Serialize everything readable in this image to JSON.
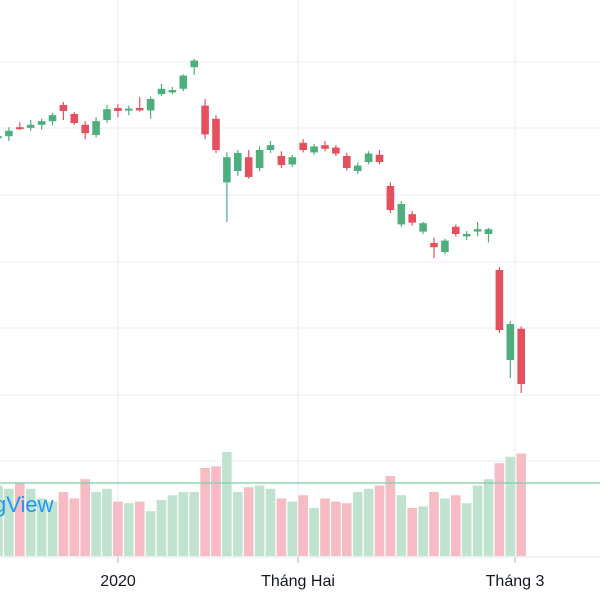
{
  "watermark": "gView",
  "chart_data": {
    "type": "candlestick",
    "title": "",
    "xlabel": "",
    "ylabel": "",
    "grid": true,
    "x_tick_labels": [
      {
        "index": 6,
        "label": "2020"
      },
      {
        "index": 15,
        "label": "Tháng Hai"
      },
      {
        "index": 26,
        "label": "Tháng 3"
      }
    ],
    "price_range": [
      0,
      100
    ],
    "volume_range": [
      0,
      100
    ],
    "colors": {
      "up": "#4caf7d",
      "down": "#e5505e",
      "up_volume": "#bfe3cf",
      "down_volume": "#f7bcc3",
      "grid": "#eaecef"
    },
    "series": [
      {
        "o": 77.0,
        "c": 77.3,
        "h": 78.2,
        "l": 76.2,
        "v": 44,
        "dir": "up"
      },
      {
        "o": 77.3,
        "c": 78.2,
        "h": 78.8,
        "l": 76.5,
        "v": 42,
        "dir": "up"
      },
      {
        "o": 78.8,
        "c": 78.8,
        "h": 79.6,
        "l": 78.3,
        "v": 46,
        "dir": "down"
      },
      {
        "o": 78.7,
        "c": 79.2,
        "h": 80.0,
        "l": 78.2,
        "v": 42,
        "dir": "up"
      },
      {
        "o": 79.2,
        "c": 79.8,
        "h": 80.2,
        "l": 78.4,
        "v": 36,
        "dir": "up"
      },
      {
        "o": 79.8,
        "c": 80.8,
        "h": 81.2,
        "l": 79.1,
        "v": 34,
        "dir": "up"
      },
      {
        "o": 81.5,
        "c": 82.5,
        "h": 83.0,
        "l": 80.0,
        "v": 40,
        "dir": "down"
      },
      {
        "o": 79.5,
        "c": 81.0,
        "h": 81.3,
        "l": 79.2,
        "v": 36,
        "dir": "down"
      },
      {
        "o": 77.8,
        "c": 79.2,
        "h": 79.8,
        "l": 76.8,
        "v": 48,
        "dir": "down"
      },
      {
        "o": 77.5,
        "c": 79.8,
        "h": 80.5,
        "l": 77.1,
        "v": 40,
        "dir": "up"
      },
      {
        "o": 80.0,
        "c": 81.8,
        "h": 82.5,
        "l": 79.5,
        "v": 42,
        "dir": "up"
      },
      {
        "o": 81.5,
        "c": 82.0,
        "h": 82.6,
        "l": 80.5,
        "v": 34,
        "dir": "down"
      },
      {
        "o": 81.6,
        "c": 81.9,
        "h": 82.4,
        "l": 80.8,
        "v": 33,
        "dir": "up"
      },
      {
        "o": 81.6,
        "c": 82.0,
        "h": 83.8,
        "l": 81.4,
        "v": 34,
        "dir": "down"
      },
      {
        "o": 81.6,
        "c": 83.5,
        "h": 83.9,
        "l": 80.2,
        "v": 28,
        "dir": "up"
      },
      {
        "o": 84.3,
        "c": 85.2,
        "h": 86.0,
        "l": 84.0,
        "v": 35,
        "dir": "up"
      },
      {
        "o": 84.6,
        "c": 85.0,
        "h": 85.5,
        "l": 84.3,
        "v": 38,
        "dir": "up"
      },
      {
        "o": 85.2,
        "c": 87.4,
        "h": 87.6,
        "l": 84.8,
        "v": 40,
        "dir": "up"
      },
      {
        "o": 88.8,
        "c": 89.9,
        "h": 90.2,
        "l": 87.5,
        "v": 40,
        "dir": "up"
      },
      {
        "o": 82.4,
        "c": 77.6,
        "h": 83.5,
        "l": 76.8,
        "v": 55,
        "dir": "down"
      },
      {
        "o": 80.2,
        "c": 75.0,
        "h": 80.8,
        "l": 74.5,
        "v": 56,
        "dir": "down"
      },
      {
        "o": 69.6,
        "c": 73.8,
        "h": 74.6,
        "l": 63.0,
        "v": 65,
        "dir": "up"
      },
      {
        "o": 71.5,
        "c": 74.5,
        "h": 75.0,
        "l": 70.7,
        "v": 40,
        "dir": "up"
      },
      {
        "o": 73.8,
        "c": 70.5,
        "h": 75.0,
        "l": 70.2,
        "v": 43,
        "dir": "down"
      },
      {
        "o": 72.0,
        "c": 75.0,
        "h": 75.6,
        "l": 71.5,
        "v": 44,
        "dir": "up"
      },
      {
        "o": 75.0,
        "c": 75.8,
        "h": 76.5,
        "l": 74.5,
        "v": 42,
        "dir": "up"
      },
      {
        "o": 74.0,
        "c": 72.5,
        "h": 74.8,
        "l": 72.0,
        "v": 36,
        "dir": "down"
      },
      {
        "o": 72.6,
        "c": 73.8,
        "h": 74.2,
        "l": 72.2,
        "v": 34,
        "dir": "up"
      },
      {
        "o": 76.2,
        "c": 75.0,
        "h": 76.8,
        "l": 74.6,
        "v": 38,
        "dir": "down"
      },
      {
        "o": 74.6,
        "c": 75.6,
        "h": 76.0,
        "l": 74.2,
        "v": 30,
        "dir": "up"
      },
      {
        "o": 75.8,
        "c": 75.2,
        "h": 76.5,
        "l": 74.8,
        "v": 36,
        "dir": "down"
      },
      {
        "o": 75.4,
        "c": 74.4,
        "h": 75.8,
        "l": 74.0,
        "v": 34,
        "dir": "down"
      },
      {
        "o": 74.0,
        "c": 72.0,
        "h": 74.5,
        "l": 71.6,
        "v": 33,
        "dir": "down"
      },
      {
        "o": 71.5,
        "c": 72.4,
        "h": 72.9,
        "l": 71.0,
        "v": 40,
        "dir": "up"
      },
      {
        "o": 73.0,
        "c": 74.4,
        "h": 74.8,
        "l": 72.6,
        "v": 42,
        "dir": "up"
      },
      {
        "o": 74.2,
        "c": 73.0,
        "h": 75.0,
        "l": 72.6,
        "v": 44,
        "dir": "down"
      },
      {
        "o": 69.0,
        "c": 65.0,
        "h": 69.6,
        "l": 64.5,
        "v": 50,
        "dir": "down"
      },
      {
        "o": 66.0,
        "c": 62.6,
        "h": 66.5,
        "l": 62.2,
        "v": 38,
        "dir": "up"
      },
      {
        "o": 64.3,
        "c": 62.9,
        "h": 64.8,
        "l": 62.4,
        "v": 30,
        "dir": "down"
      },
      {
        "o": 62.8,
        "c": 61.4,
        "h": 63.0,
        "l": 61.0,
        "v": 31,
        "dir": "up"
      },
      {
        "o": 59.5,
        "c": 58.8,
        "h": 60.4,
        "l": 57.0,
        "v": 40,
        "dir": "down"
      },
      {
        "o": 58.0,
        "c": 59.9,
        "h": 60.2,
        "l": 57.6,
        "v": 36,
        "dir": "up"
      },
      {
        "o": 62.2,
        "c": 61.0,
        "h": 62.6,
        "l": 60.6,
        "v": 38,
        "dir": "down"
      },
      {
        "o": 60.6,
        "c": 61.0,
        "h": 61.5,
        "l": 60.0,
        "v": 33,
        "dir": "up"
      },
      {
        "o": 61.4,
        "c": 61.8,
        "h": 63.0,
        "l": 60.6,
        "v": 44,
        "dir": "up"
      },
      {
        "o": 61.8,
        "c": 61.0,
        "h": 62.0,
        "l": 59.6,
        "v": 48,
        "dir": "up"
      },
      {
        "o": 55.0,
        "c": 45.0,
        "h": 55.5,
        "l": 44.5,
        "v": 58,
        "dir": "down"
      },
      {
        "o": 40.0,
        "c": 46.0,
        "h": 46.5,
        "l": 37.0,
        "v": 62,
        "dir": "up"
      },
      {
        "o": 45.2,
        "c": 36.0,
        "h": 45.6,
        "l": 34.5,
        "v": 64,
        "dir": "down"
      }
    ]
  }
}
